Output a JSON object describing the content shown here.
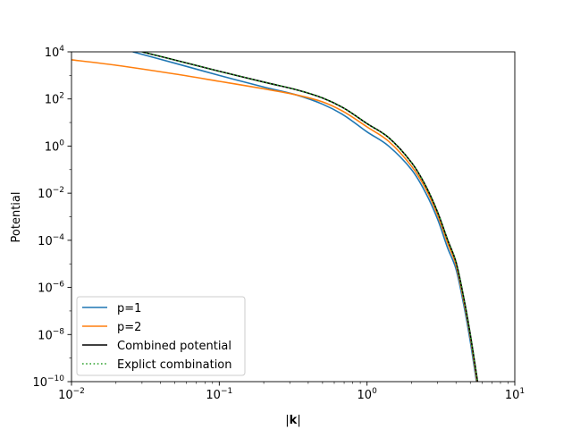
{
  "chart_data": {
    "type": "line",
    "title": "",
    "xlabel": "|k|",
    "ylabel": "Potential",
    "xscale": "log",
    "yscale": "log",
    "xlim": [
      0.01,
      10
    ],
    "ylim": [
      1e-10,
      10000
    ],
    "grid": false,
    "legend_position": "lower left",
    "x_ticks": [
      {
        "value": 0.01,
        "base": "10",
        "exp": "−2"
      },
      {
        "value": 0.1,
        "base": "10",
        "exp": "−1"
      },
      {
        "value": 1,
        "base": "10",
        "exp": "0"
      },
      {
        "value": 10,
        "base": "10",
        "exp": "1"
      }
    ],
    "y_ticks": [
      {
        "value": 10000.0,
        "base": "10",
        "exp": "4"
      },
      {
        "value": 100.0,
        "base": "10",
        "exp": "2"
      },
      {
        "value": 1.0,
        "base": "10",
        "exp": "0"
      },
      {
        "value": 0.01,
        "base": "10",
        "exp": "−2"
      },
      {
        "value": 0.0001,
        "base": "10",
        "exp": "−4"
      },
      {
        "value": 1e-06,
        "base": "10",
        "exp": "−6"
      },
      {
        "value": 1e-08,
        "base": "10",
        "exp": "−8"
      },
      {
        "value": 1e-10,
        "base": "10",
        "exp": "−10"
      }
    ],
    "series": [
      {
        "name": "p=1",
        "color": "#1f77b4",
        "style": "solid",
        "x": [
          0.026,
          0.05,
          0.1,
          0.2,
          0.33,
          0.5,
          0.7,
          1.0,
          1.4,
          2.0,
          2.5,
          3.0,
          3.5,
          4.0,
          4.5,
          5.0,
          5.5
        ],
        "y": [
          10000,
          3300,
          1000,
          320,
          150,
          60,
          20,
          4.0,
          1.0,
          0.1,
          0.01,
          0.0008,
          5e-05,
          6e-06,
          2e-07,
          5e-09,
          1e-10
        ]
      },
      {
        "name": "p=2",
        "color": "#ff7f0e",
        "style": "solid",
        "x": [
          0.01,
          0.02,
          0.05,
          0.1,
          0.2,
          0.33,
          0.5,
          0.7,
          1.0,
          1.4,
          2.0,
          2.5,
          3.0,
          3.5,
          4.0,
          4.5,
          5.0,
          5.55
        ],
        "y": [
          4600,
          2700,
          1150,
          560,
          270,
          150,
          75,
          28,
          6.5,
          1.6,
          0.14,
          0.015,
          0.0012,
          8e-05,
          9e-06,
          3e-07,
          8e-09,
          1e-10
        ]
      },
      {
        "name": "Combined potential",
        "color": "#000000",
        "style": "solid",
        "x": [
          0.03,
          0.05,
          0.1,
          0.2,
          0.33,
          0.5,
          0.7,
          1.0,
          1.4,
          2.0,
          2.5,
          3.0,
          3.5,
          4.0,
          4.5,
          5.0,
          5.6
        ],
        "y": [
          10000,
          4500,
          1500,
          520,
          250,
          110,
          40,
          9.0,
          2.3,
          0.2,
          0.02,
          0.0016,
          0.00011,
          1.2e-05,
          4e-07,
          1e-08,
          1e-10
        ]
      },
      {
        "name": "Explict combination",
        "color": "#2ca02c",
        "style": "dotted",
        "x": [
          0.03,
          0.05,
          0.1,
          0.2,
          0.33,
          0.5,
          0.7,
          1.0,
          1.4,
          2.0,
          2.5,
          3.0,
          3.5,
          4.0,
          4.5,
          5.0,
          5.6
        ],
        "y": [
          10000,
          4500,
          1500,
          520,
          250,
          110,
          40,
          9.0,
          2.3,
          0.2,
          0.02,
          0.0016,
          0.00011,
          1.2e-05,
          4e-07,
          1e-08,
          1e-10
        ]
      }
    ]
  },
  "labels": {
    "xlabel_prefix": "|",
    "xlabel_bold": "k",
    "xlabel_suffix": "|",
    "ylabel": "Potential"
  },
  "legend": {
    "items": [
      {
        "label": "p=1",
        "color": "#1f77b4",
        "style": "solid"
      },
      {
        "label": "p=2",
        "color": "#ff7f0e",
        "style": "solid"
      },
      {
        "label": "Combined potential",
        "color": "#000000",
        "style": "solid"
      },
      {
        "label": "Explict combination",
        "color": "#2ca02c",
        "style": "dotted"
      }
    ]
  }
}
